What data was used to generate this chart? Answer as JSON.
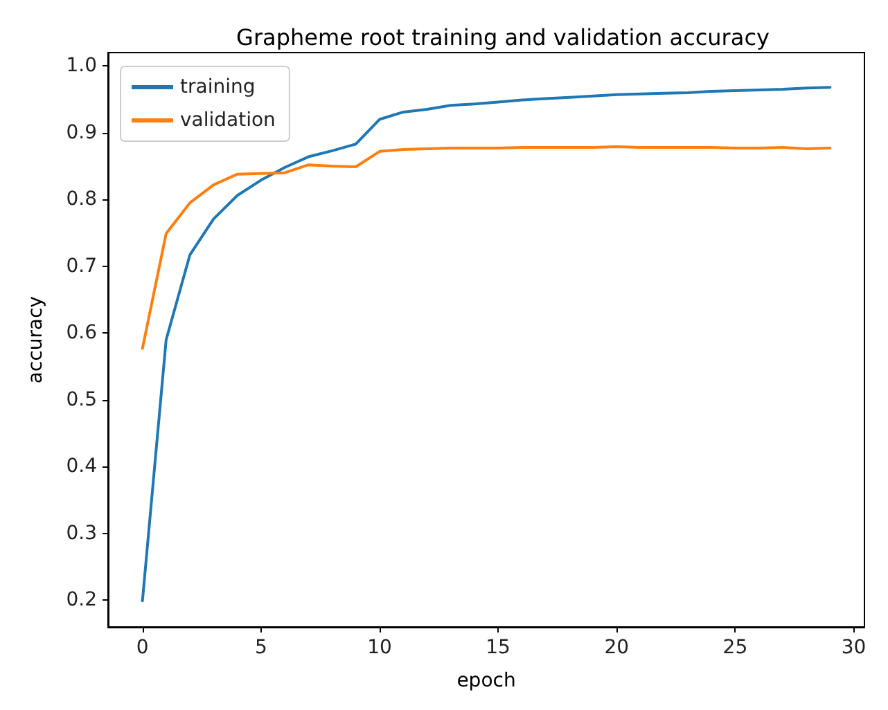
{
  "chart_data": {
    "type": "line",
    "title": "Grapheme root training and validation accuracy",
    "xlabel": "epoch",
    "ylabel": "accuracy",
    "x": [
      0,
      1,
      2,
      3,
      4,
      5,
      6,
      7,
      8,
      9,
      10,
      11,
      12,
      13,
      14,
      15,
      16,
      17,
      18,
      19,
      20,
      21,
      22,
      23,
      24,
      25,
      26,
      27,
      28,
      29
    ],
    "series": [
      {
        "name": "training",
        "color": "#1f77b4",
        "values": [
          0.199,
          0.59,
          0.717,
          0.771,
          0.806,
          0.829,
          0.848,
          0.864,
          0.873,
          0.883,
          0.92,
          0.931,
          0.935,
          0.941,
          0.943,
          0.946,
          0.949,
          0.951,
          0.953,
          0.955,
          0.957,
          0.958,
          0.959,
          0.96,
          0.962,
          0.963,
          0.964,
          0.965,
          0.967,
          0.968
        ]
      },
      {
        "name": "validation",
        "color": "#ff7f0e",
        "values": [
          0.577,
          0.749,
          0.795,
          0.822,
          0.838,
          0.839,
          0.84,
          0.852,
          0.85,
          0.849,
          0.872,
          0.875,
          0.876,
          0.877,
          0.877,
          0.877,
          0.878,
          0.878,
          0.878,
          0.878,
          0.879,
          0.878,
          0.878,
          0.878,
          0.878,
          0.877,
          0.877,
          0.878,
          0.876,
          0.877
        ]
      }
    ],
    "xlim": [
      -1.45,
      30.45
    ],
    "xticks": [
      0,
      5,
      10,
      15,
      20,
      25,
      30
    ],
    "ylim": [
      0.16,
      1.02
    ],
    "yticks": [
      0.2,
      0.3,
      0.4,
      0.5,
      0.6,
      0.7,
      0.8,
      0.9,
      {
        "value": 1.0,
        "label": "1.0"
      }
    ],
    "grid": false,
    "legend": "top left",
    "marker": "none",
    "line_style": "solid"
  }
}
